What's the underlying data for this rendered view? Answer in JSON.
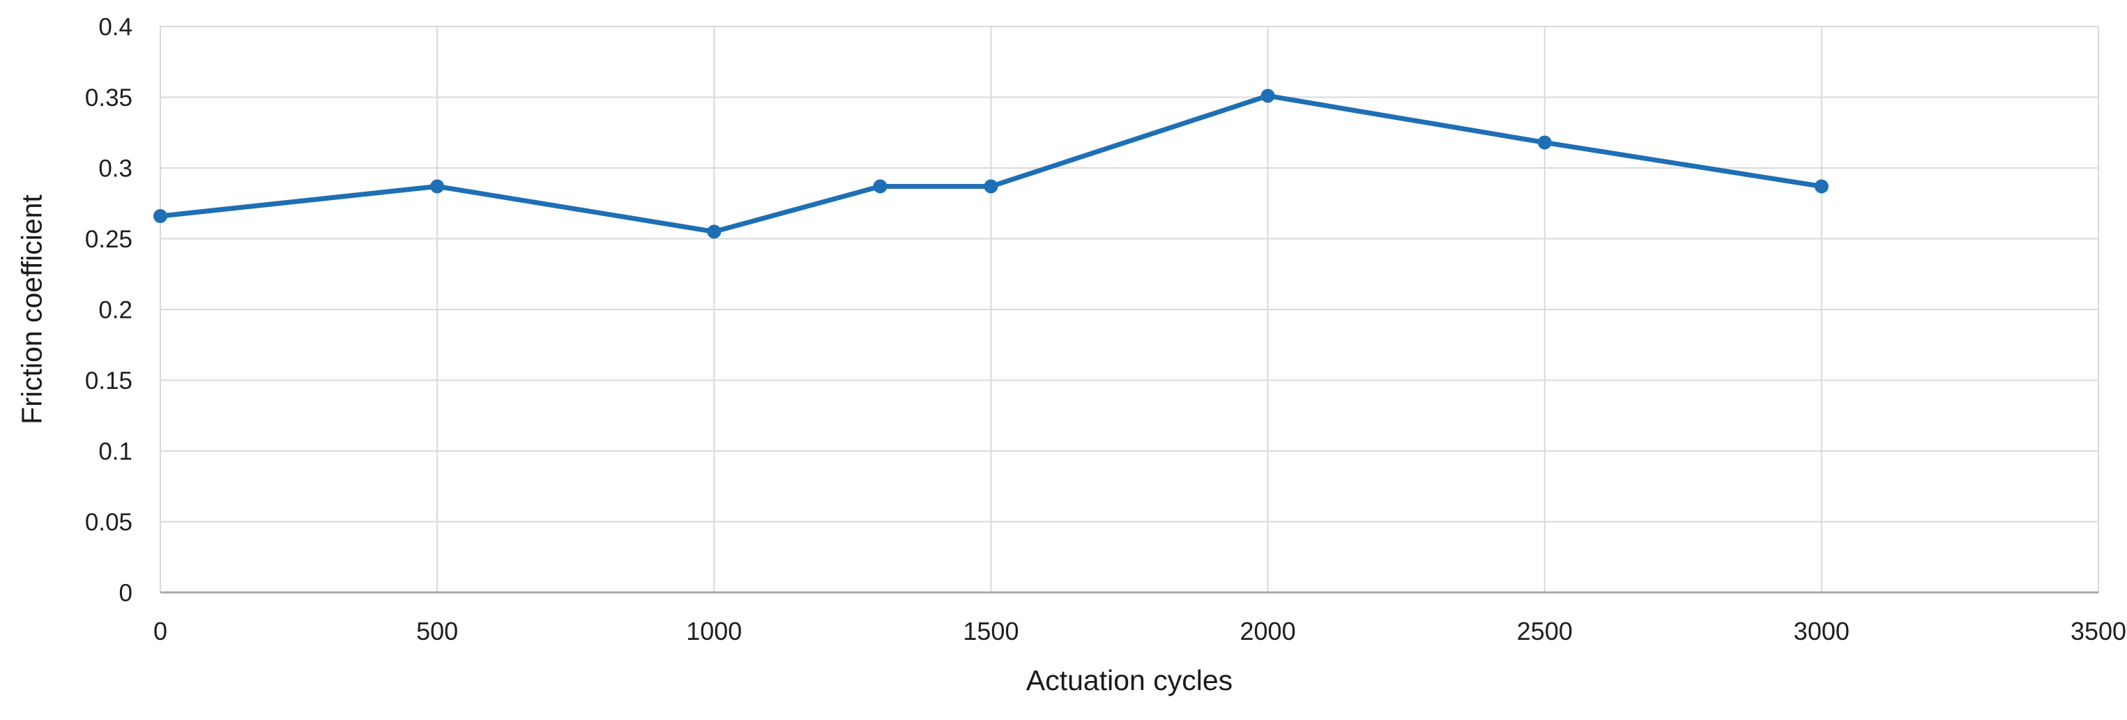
{
  "chart_data": {
    "type": "line",
    "title": "",
    "xlabel": "Actuation cycles",
    "ylabel": "Friction coefficient",
    "x": [
      0,
      500,
      1000,
      1300,
      1500,
      2000,
      2500,
      3000
    ],
    "series": [
      {
        "name": "friction-coefficient",
        "values": [
          0.266,
          0.287,
          0.255,
          0.287,
          0.287,
          0.351,
          0.318,
          0.287
        ]
      }
    ],
    "xlim": [
      0,
      3500
    ],
    "ylim": [
      0,
      0.4
    ],
    "x_ticks": [
      0,
      500,
      1000,
      1500,
      2000,
      2500,
      3000,
      3500
    ],
    "x_tick_labels": [
      "0",
      "500",
      "1000",
      "1500",
      "2000",
      "2500",
      "3000",
      "3500"
    ],
    "y_ticks": [
      0,
      0.05,
      0.1,
      0.15,
      0.2,
      0.25,
      0.3,
      0.35,
      0.4
    ],
    "y_tick_labels": [
      "0",
      "0.05",
      "0.1",
      "0.15",
      "0.2",
      "0.25",
      "0.3",
      "0.35",
      "0.4"
    ],
    "grid": true,
    "legend_position": "none",
    "marker": "circle",
    "colors": {
      "line": "#1E6FB4",
      "grid": "#D9D9D9",
      "axis": "#A6A6A6",
      "text": "#1F1F1F"
    }
  }
}
